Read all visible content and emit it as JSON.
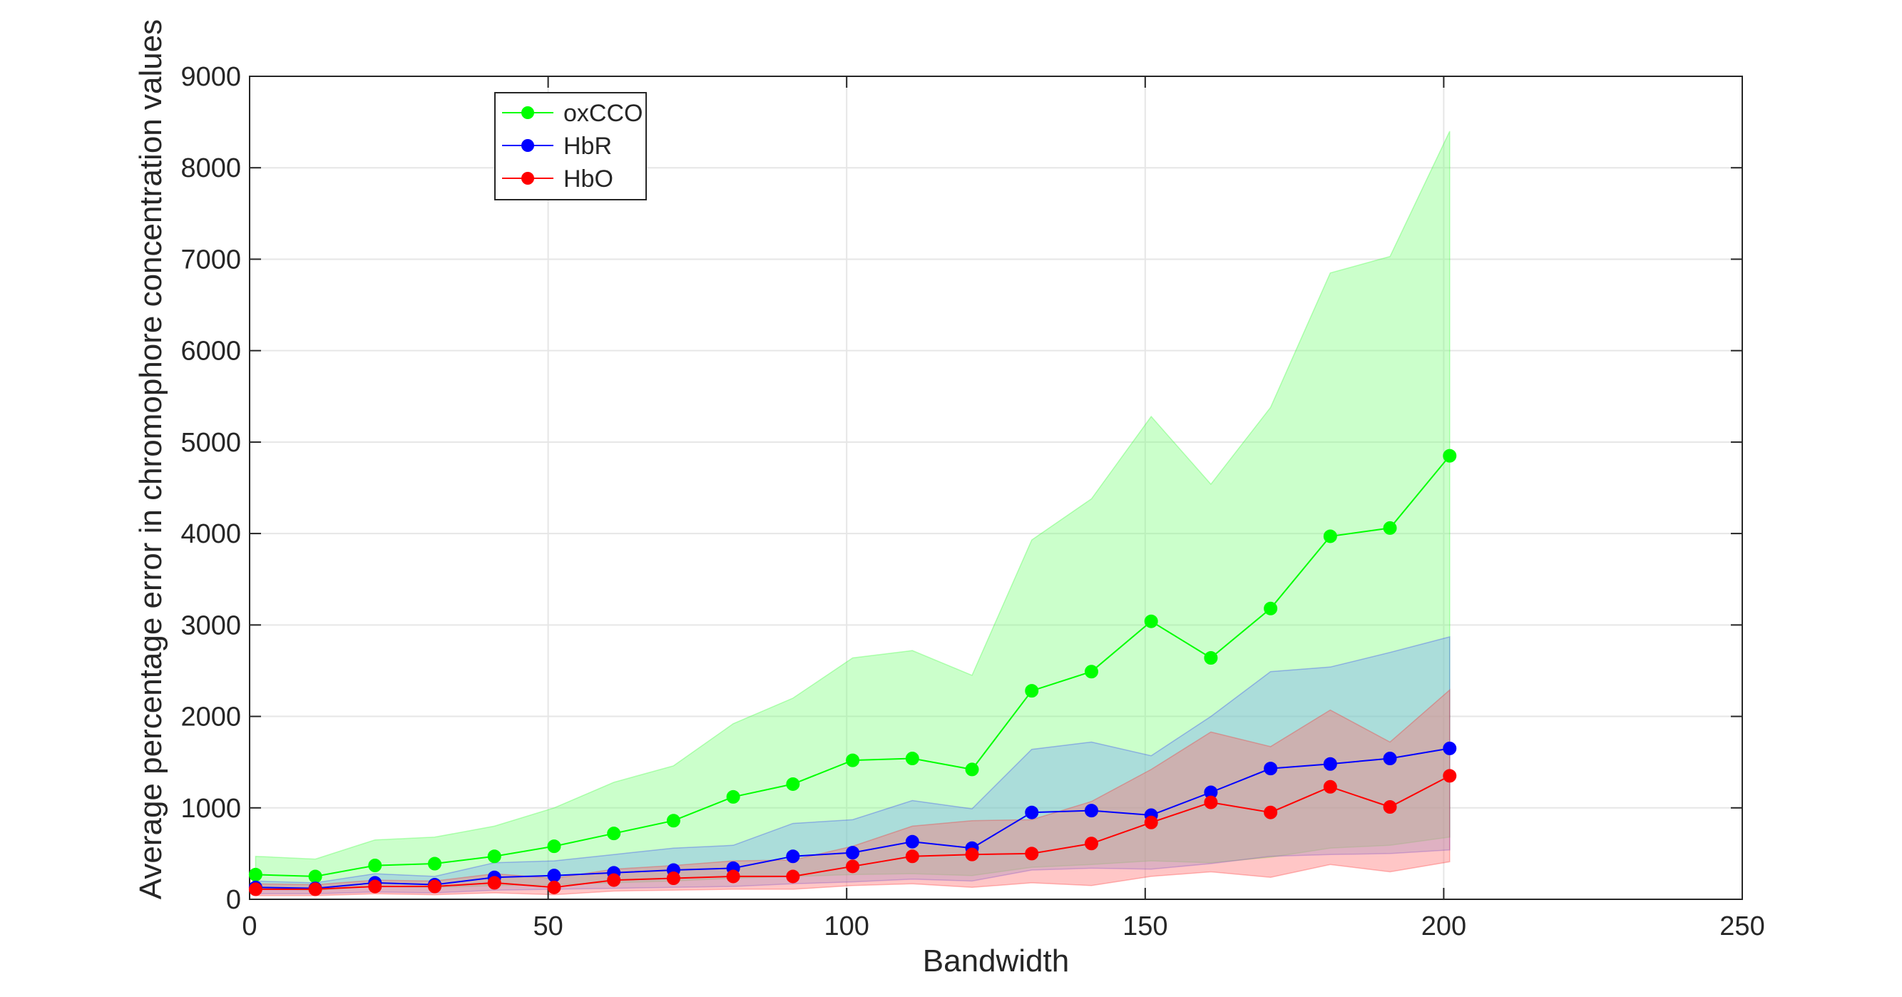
{
  "chart_data": {
    "type": "line",
    "title": "",
    "xlabel": "Bandwidth",
    "ylabel": "Average percentage error in chromophore concentration values",
    "xlim": [
      0,
      250
    ],
    "ylim": [
      0,
      9000
    ],
    "xticks": [
      "0",
      "50",
      "100",
      "150",
      "200",
      "250"
    ],
    "yticks": [
      "0",
      "1000",
      "2000",
      "3000",
      "4000",
      "5000",
      "6000",
      "7000",
      "8000",
      "9000"
    ],
    "grid": true,
    "legend_position": "top-left",
    "x": [
      1,
      11,
      21,
      31,
      41,
      51,
      61,
      71,
      81,
      91,
      101,
      111,
      121,
      131,
      141,
      151,
      161,
      171,
      181,
      191,
      201
    ],
    "series": [
      {
        "name": "oxCCO",
        "color": "#00ff00",
        "fill_color": "#7dff7d",
        "values": [
          270,
          250,
          370,
          390,
          470,
          580,
          720,
          860,
          1120,
          1260,
          1520,
          1540,
          1420,
          2280,
          2490,
          3040,
          2640,
          3180,
          3970,
          4060,
          4850
        ],
        "upper": [
          470,
          440,
          650,
          680,
          800,
          1000,
          1280,
          1460,
          1920,
          2200,
          2640,
          2720,
          2450,
          3930,
          4380,
          5280,
          4540,
          5380,
          6850,
          7030,
          8400
        ],
        "lower": [
          120,
          100,
          140,
          130,
          150,
          160,
          180,
          200,
          230,
          250,
          270,
          280,
          260,
          350,
          380,
          420,
          400,
          460,
          560,
          590,
          680
        ]
      },
      {
        "name": "HbR",
        "color": "#0000ff",
        "fill_color": "#7aaaf0",
        "values": [
          130,
          120,
          180,
          160,
          240,
          260,
          290,
          320,
          340,
          470,
          510,
          630,
          560,
          950,
          970,
          920,
          1170,
          1430,
          1480,
          1540,
          1650
        ],
        "upper": [
          200,
          180,
          280,
          250,
          400,
          420,
          490,
          560,
          590,
          830,
          870,
          1080,
          990,
          1640,
          1720,
          1570,
          2000,
          2490,
          2540,
          2700,
          2870
        ],
        "lower": [
          60,
          60,
          80,
          70,
          100,
          110,
          120,
          130,
          140,
          170,
          190,
          220,
          200,
          320,
          340,
          330,
          390,
          470,
          490,
          500,
          540
        ]
      },
      {
        "name": "HbO",
        "color": "#ff0000",
        "fill_color": "#ff7070",
        "values": [
          110,
          110,
          140,
          140,
          180,
          130,
          210,
          230,
          250,
          250,
          360,
          470,
          490,
          500,
          610,
          840,
          1060,
          950,
          1230,
          1010,
          1350
        ],
        "upper": [
          170,
          160,
          210,
          200,
          280,
          230,
          330,
          370,
          420,
          430,
          580,
          800,
          860,
          870,
          1070,
          1420,
          1830,
          1670,
          2070,
          1720,
          2290
        ],
        "lower": [
          40,
          40,
          60,
          50,
          70,
          50,
          90,
          100,
          110,
          110,
          150,
          170,
          130,
          180,
          150,
          250,
          300,
          240,
          380,
          300,
          410
        ]
      }
    ],
    "legend_order": [
      "oxCCO",
      "HbR",
      "HbO"
    ]
  }
}
